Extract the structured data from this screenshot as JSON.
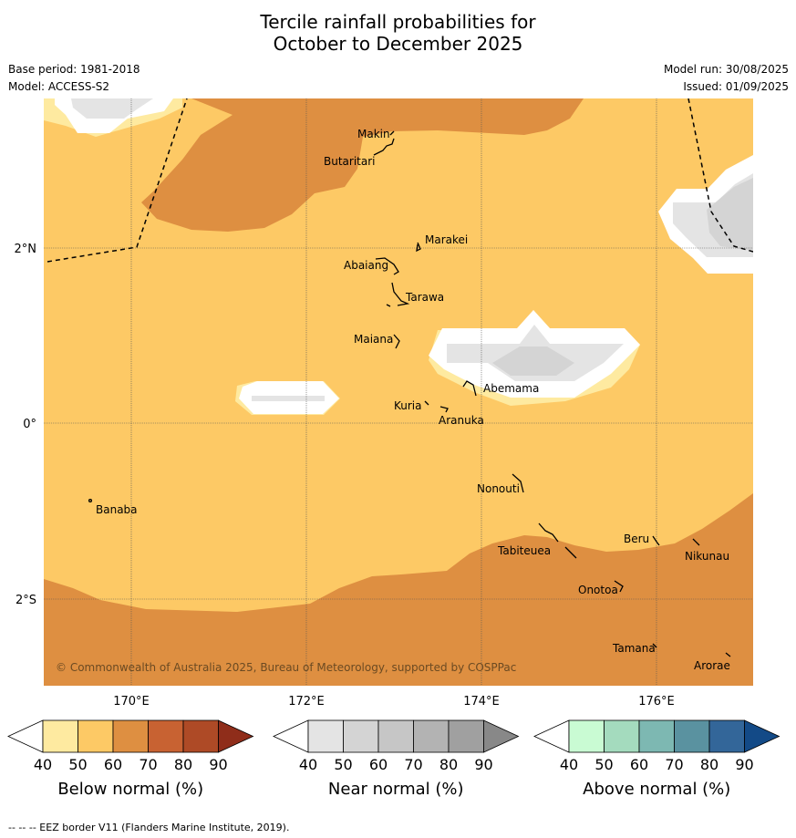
{
  "title_line1": "Tercile rainfall probabilities for",
  "title_line2": "October to December 2025",
  "base_period": "Base period: 1981-2018",
  "model": "Model: ACCESS-S2",
  "model_run": "Model run: 30/08/2025",
  "issued": "Issued: 01/09/2025",
  "copyright": "© Commonwealth of Australia 2025, Bureau of Meteorology, supported by COSPPac",
  "footnote": "--  --  -- EEZ border V11 (Flanders Marine Institute, 2019).",
  "lon_labels": [
    "170°E",
    "172°E",
    "174°E",
    "176°E"
  ],
  "lat_labels": [
    "2°N",
    "0°",
    "2°S"
  ],
  "places": [
    {
      "name": "Makin"
    },
    {
      "name": "Butaritari"
    },
    {
      "name": "Marakei"
    },
    {
      "name": "Abaiang"
    },
    {
      "name": "Tarawa"
    },
    {
      "name": "Maiana"
    },
    {
      "name": "Abemama"
    },
    {
      "name": "Kuria"
    },
    {
      "name": "Aranuka"
    },
    {
      "name": "Nonouti"
    },
    {
      "name": "Banaba"
    },
    {
      "name": "Beru"
    },
    {
      "name": "Tabiteuea"
    },
    {
      "name": "Nikunau"
    },
    {
      "name": "Onotoa"
    },
    {
      "name": "Tamana"
    },
    {
      "name": "Arorae"
    }
  ],
  "colorbars": [
    {
      "label": "Below normal (%)",
      "ticks": [
        "40",
        "50",
        "60",
        "70",
        "80",
        "90"
      ],
      "colors": [
        "#ffffff",
        "#feeaa0",
        "#fdc965",
        "#de8f41",
        "#c86232",
        "#ae4a26",
        "#8f2d1a"
      ]
    },
    {
      "label": "Near normal (%)",
      "ticks": [
        "40",
        "50",
        "60",
        "70",
        "80",
        "90"
      ],
      "colors": [
        "#ffffff",
        "#e4e4e4",
        "#d4d4d4",
        "#c6c6c6",
        "#b3b3b3",
        "#a0a0a0",
        "#888888"
      ]
    },
    {
      "label": "Above normal (%)",
      "ticks": [
        "40",
        "50",
        "60",
        "70",
        "80",
        "90"
      ],
      "colors": [
        "#ffffff",
        "#c9fbd3",
        "#a4dbbe",
        "#7db8b2",
        "#5a92a0",
        "#336699",
        "#134a87"
      ]
    }
  ]
}
